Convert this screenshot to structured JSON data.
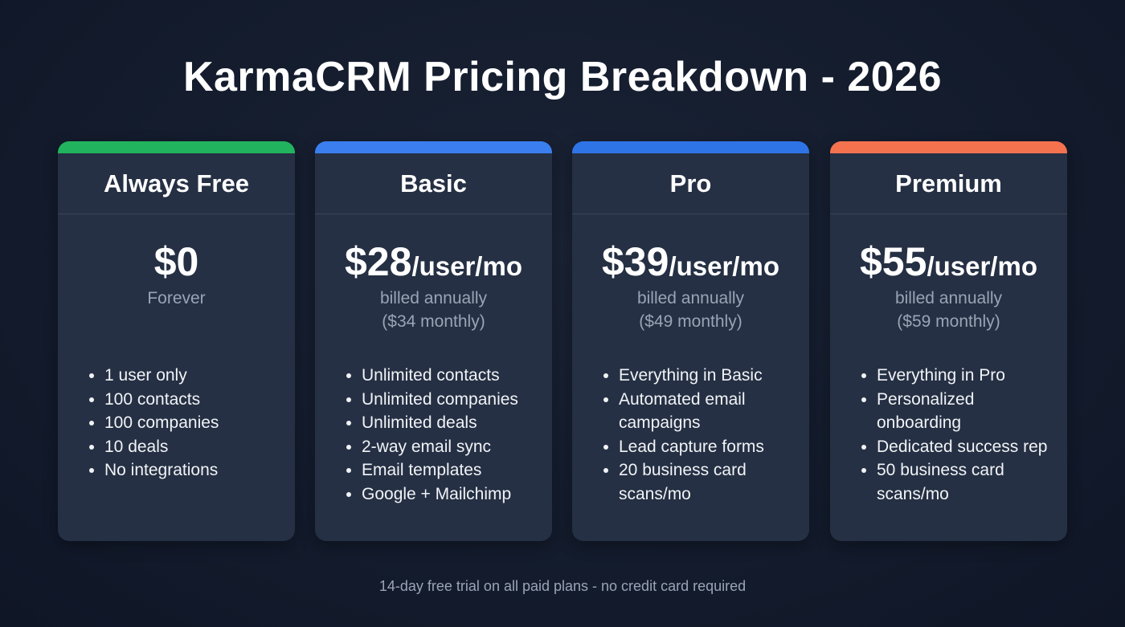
{
  "title": "KarmaCRM Pricing Breakdown - 2026",
  "plans": [
    {
      "name": "Always Free",
      "accent": "#22b35e",
      "price": "$0",
      "unit": "",
      "billing": "Forever",
      "monthly": "",
      "features": [
        "1 user only",
        "100 contacts",
        "100 companies",
        "10 deals",
        "No integrations"
      ]
    },
    {
      "name": "Basic",
      "accent": "#3b7ef0",
      "price": "$28",
      "unit": "/user/mo",
      "billing": "billed annually",
      "monthly": "($34 monthly)",
      "features": [
        "Unlimited contacts",
        "Unlimited companies",
        "Unlimited deals",
        "2-way email sync",
        "Email templates",
        "Google + Mailchimp"
      ]
    },
    {
      "name": "Pro",
      "accent": "#2f74e6",
      "price": "$39",
      "unit": "/user/mo",
      "billing": "billed annually",
      "monthly": "($49 monthly)",
      "features": [
        "Everything in Basic",
        "Automated email campaigns",
        "Lead capture forms",
        "20 business card scans/mo"
      ]
    },
    {
      "name": "Premium",
      "accent": "#f5724f",
      "price": "$55",
      "unit": "/user/mo",
      "billing": "billed annually",
      "monthly": "($59 monthly)",
      "features": [
        "Everything in Pro",
        "Personalized onboarding",
        "Dedicated success rep",
        "50 business card scans/mo"
      ]
    }
  ],
  "footer": "14-day free trial on all paid plans - no credit card required"
}
